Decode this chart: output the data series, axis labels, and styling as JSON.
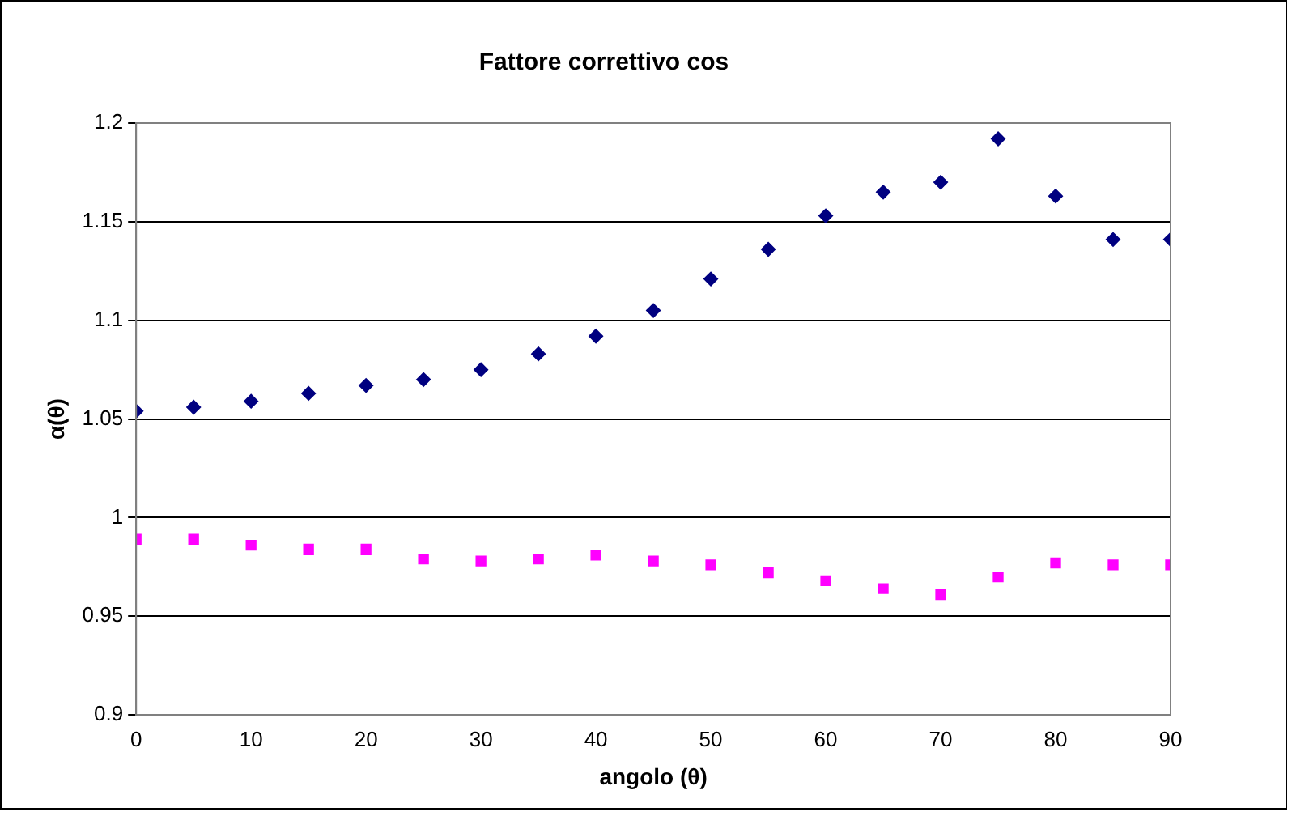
{
  "chart_data": {
    "type": "scatter",
    "title": "Fattore correttivo cos",
    "xlabel": "angolo (θ)",
    "ylabel": "α(θ)",
    "x": [
      0,
      5,
      10,
      15,
      20,
      25,
      30,
      35,
      40,
      45,
      50,
      55,
      60,
      65,
      70,
      75,
      80,
      85,
      90
    ],
    "series": [
      {
        "color": "#000080",
        "marker": "diamond",
        "values": [
          1.054,
          1.056,
          1.059,
          1.063,
          1.067,
          1.07,
          1.075,
          1.083,
          1.092,
          1.105,
          1.121,
          1.136,
          1.153,
          1.165,
          1.17,
          1.192,
          1.163,
          1.141,
          1.141
        ]
      },
      {
        "color": "#ff00ff",
        "marker": "square",
        "values": [
          0.989,
          0.989,
          0.986,
          0.984,
          0.984,
          0.979,
          0.978,
          0.979,
          0.981,
          0.978,
          0.976,
          0.972,
          0.968,
          0.964,
          0.961,
          0.97,
          0.977,
          0.976,
          0.976
        ]
      }
    ],
    "xlim": [
      0,
      90
    ],
    "xticks": [
      0,
      10,
      20,
      30,
      40,
      50,
      60,
      70,
      80,
      90
    ],
    "ylim": [
      0.9,
      1.2
    ],
    "yticks": [
      0.9,
      0.95,
      1,
      1.05,
      1.1,
      1.15,
      1.2
    ],
    "grid": "y"
  }
}
